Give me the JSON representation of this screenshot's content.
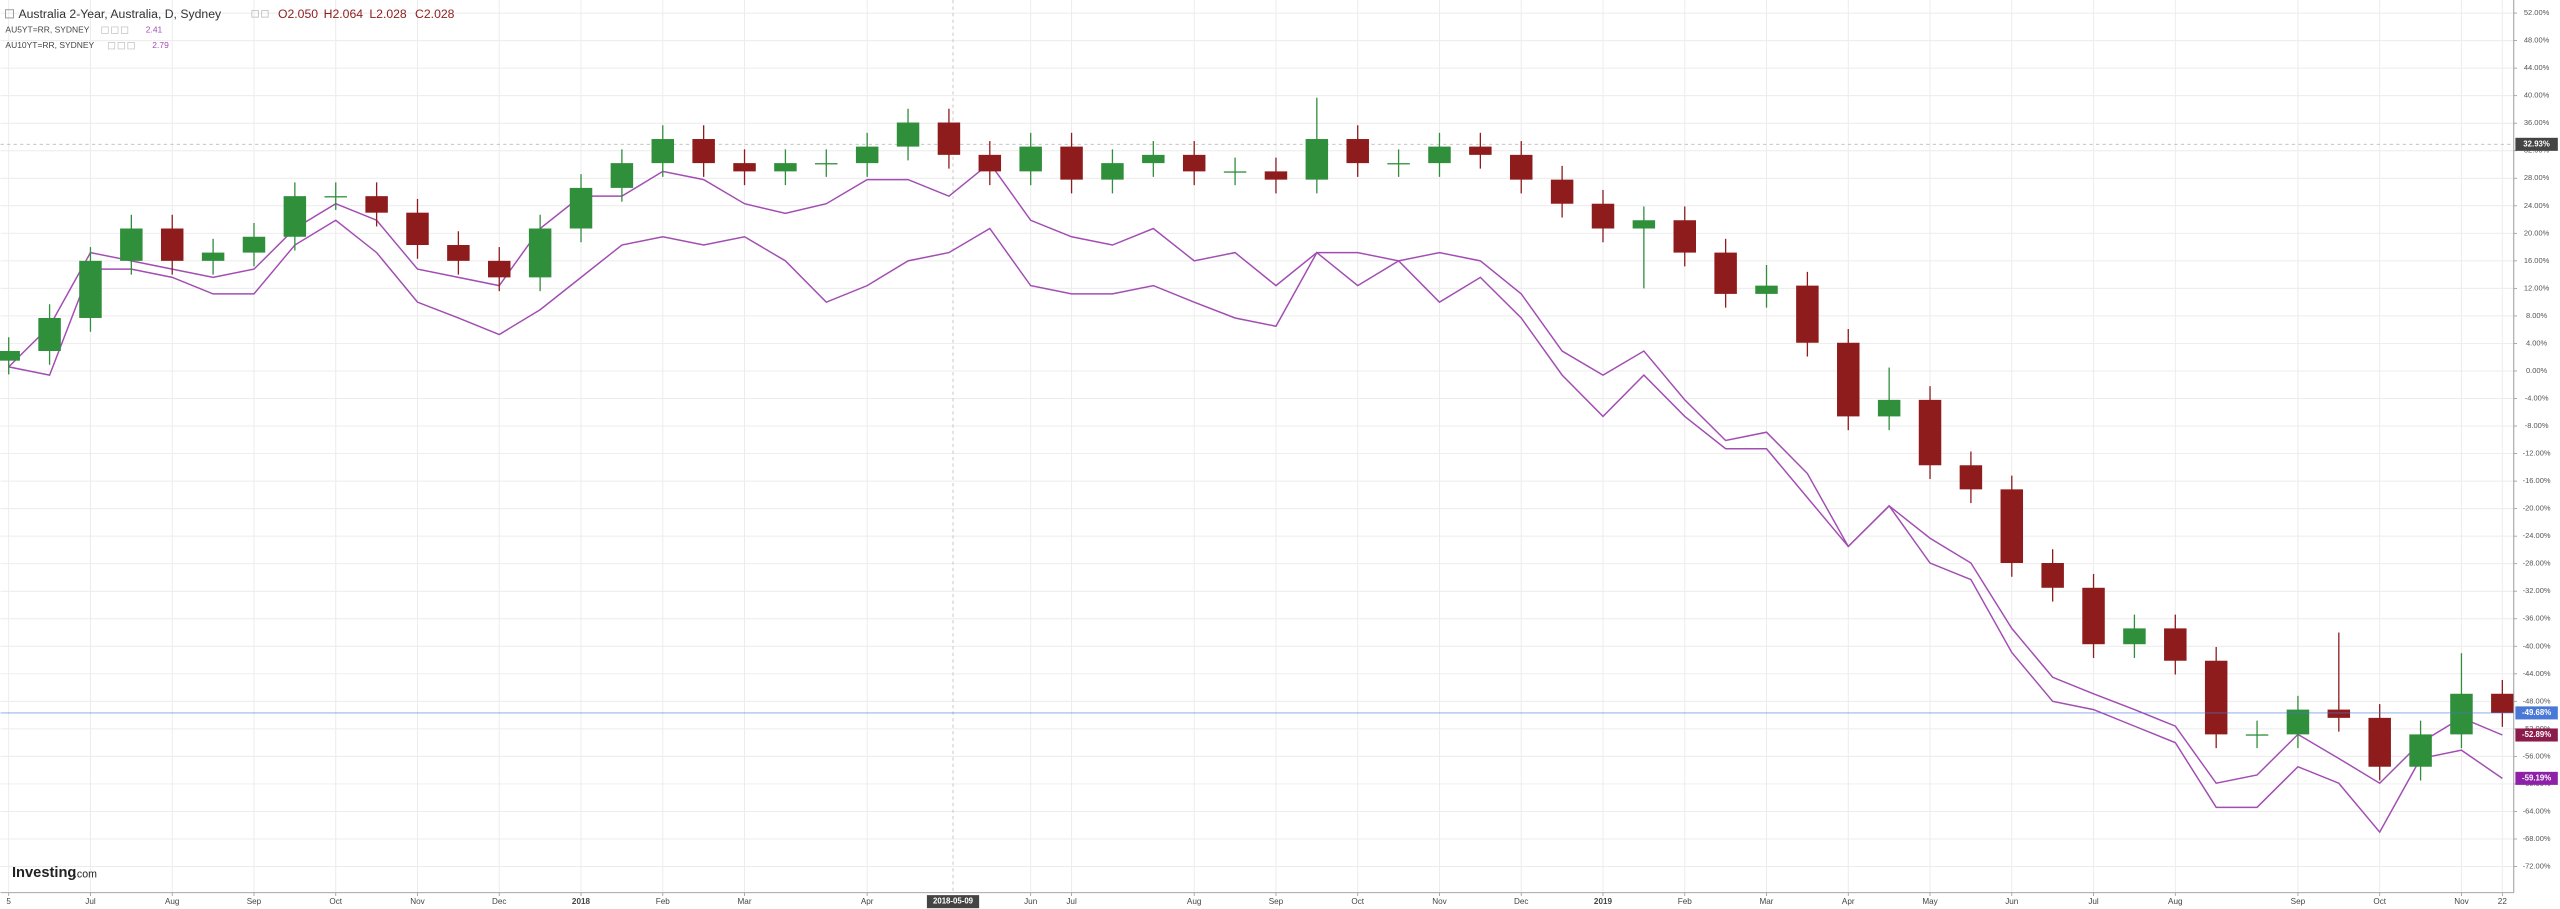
{
  "chart_data": {
    "type": "candlestick",
    "title": "Australia 2-Year, Australia, D, Sydney",
    "ohlc_readout": [
      "O2.050",
      "H2.064",
      "L2.028",
      "C2.028"
    ],
    "logo": {
      "name": "Investing",
      "suffix": ".com"
    },
    "categories": [
      "5",
      null,
      "Jul",
      null,
      "Aug",
      null,
      "Sep",
      null,
      "Oct",
      null,
      "Nov",
      null,
      "Dec",
      null,
      "2018",
      null,
      "Feb",
      null,
      "Mar",
      null,
      null,
      "Apr",
      null,
      null,
      null,
      "Jun",
      "Jul",
      null,
      null,
      "Aug",
      null,
      "Sep",
      null,
      "Oct",
      null,
      "Nov",
      null,
      "Dec",
      null,
      "2019",
      null,
      "Feb",
      null,
      "Mar",
      null,
      "Apr",
      null,
      "May",
      null,
      "Jun",
      null,
      "Jul",
      null,
      "Aug",
      null,
      null,
      "Sep",
      null,
      "Oct",
      null,
      "Nov",
      "22"
    ],
    "open": [
      1.5,
      2.9,
      7.7,
      16,
      20.7,
      16,
      17.2,
      19.5,
      25.4,
      25.4,
      23,
      18.3,
      16,
      13.6,
      20.7,
      26.6,
      30.2,
      33.7,
      30.2,
      29,
      30.2,
      30.2,
      32.6,
      36.1,
      31.4,
      29,
      32.6,
      27.8,
      30.2,
      31.4,
      29,
      29,
      27.8,
      33.7,
      30.2,
      30.2,
      32.6,
      31.4,
      27.8,
      24.3,
      20.7,
      21.9,
      17.2,
      11.2,
      12.4,
      4.1,
      -6.6,
      -4.2,
      -13.7,
      -17.2,
      -27.9,
      -31.5,
      -39.7,
      -37.4,
      -42.1,
      -52.8,
      -52.8,
      -49.2,
      -50.4,
      -57.5,
      -52.8,
      -46.9
    ],
    "high": [
      4.9,
      9.7,
      18,
      22.7,
      22.7,
      19.2,
      21.5,
      27.4,
      27.4,
      27.4,
      25,
      20.3,
      18,
      22.7,
      28.6,
      32.2,
      35.7,
      35.7,
      32.2,
      32.2,
      32.2,
      34.6,
      38.1,
      38.1,
      33.4,
      34.6,
      34.6,
      32.2,
      33.4,
      33.4,
      31,
      31,
      39.7,
      35.7,
      32.2,
      34.6,
      34.6,
      33.4,
      29.8,
      26.3,
      23.9,
      23.9,
      19.2,
      15.4,
      14.4,
      6.1,
      0.5,
      -2.2,
      -11.7,
      -15.2,
      -25.9,
      -29.5,
      -35.4,
      -35.4,
      -40.1,
      -50.8,
      -47.2,
      -38,
      -48.4,
      -50.8,
      -41,
      -44.9
    ],
    "low": [
      -0.5,
      0.9,
      5.7,
      14,
      14,
      14,
      15.2,
      17.5,
      23.4,
      21,
      16.3,
      14,
      11.6,
      11.6,
      18.7,
      24.6,
      28.2,
      28.2,
      27,
      27,
      28.2,
      28.2,
      30.6,
      29.4,
      27,
      27,
      25.8,
      25.8,
      28.2,
      27,
      27,
      25.8,
      25.8,
      28.2,
      28.2,
      28.2,
      29.4,
      25.8,
      22.3,
      18.7,
      12,
      15.2,
      9.2,
      9.2,
      2.1,
      -8.6,
      -8.6,
      -15.7,
      -19.2,
      -29.9,
      -33.5,
      -41.7,
      -41.7,
      -44.1,
      -54.8,
      -54.8,
      -54.8,
      -52.4,
      -59.5,
      -59.5,
      -54.8,
      -51.7
    ],
    "close": [
      2.9,
      7.7,
      16,
      20.7,
      16,
      17.2,
      19.5,
      25.4,
      25.4,
      23,
      18.3,
      16,
      13.6,
      20.7,
      26.6,
      30.2,
      33.7,
      30.2,
      29,
      30.2,
      30.2,
      32.6,
      36.1,
      31.4,
      29,
      32.6,
      27.8,
      30.2,
      31.4,
      29,
      29,
      27.8,
      33.7,
      30.2,
      30.2,
      32.6,
      31.4,
      27.8,
      24.3,
      20.7,
      21.9,
      17.2,
      11.2,
      12.4,
      4.1,
      -6.6,
      -4.2,
      -13.7,
      -17.2,
      -27.9,
      -31.5,
      -39.7,
      -37.4,
      -42.1,
      -52.8,
      -52.8,
      -49.2,
      -50.4,
      -57.5,
      -52.8,
      -46.9,
      -49.68
    ],
    "up_color": "#2f8f3a",
    "down_color": "#8e1c1c",
    "last_label": {
      "value": -49.68,
      "label": "-49.68%",
      "color": "#4a78d6"
    },
    "series": [
      {
        "name": "AU5YT=RR, SYDNEY",
        "readout": "2.41",
        "color": "#a24db2",
        "type": "line",
        "values": [
          0.6,
          6.5,
          17.2,
          16,
          14.8,
          13.6,
          14.8,
          20.7,
          24.3,
          21.9,
          14.8,
          13.6,
          12.4,
          20.7,
          25.4,
          25.4,
          29,
          27.8,
          24.3,
          22.9,
          24.3,
          27.8,
          27.8,
          25.4,
          30.2,
          21.9,
          19.5,
          18.3,
          20.7,
          16,
          17.2,
          12.4,
          17.2,
          17.2,
          16,
          17.2,
          16,
          11.2,
          2.9,
          -0.6,
          2.9,
          -4.2,
          -10.1,
          -8.9,
          -14.9,
          -25.5,
          -19.6,
          -24.3,
          -27.9,
          -37.4,
          -44.5,
          -46.9,
          -49.2,
          -51.6,
          -59.9,
          -58.7,
          -52.8,
          -56.3,
          -59.9,
          -54,
          -50.4,
          -52.89
        ],
        "last_label": {
          "value": -52.89,
          "label": "-52.89%",
          "color": "#8a1b4a"
        }
      },
      {
        "name": "AU10YT=RR, SYDNEY",
        "readout": "2.79",
        "color": "#a24db2",
        "type": "line",
        "values": [
          0.6,
          -0.6,
          14.8,
          14.8,
          13.6,
          11.2,
          11.2,
          18.3,
          21.9,
          17.2,
          10,
          7.7,
          5.3,
          8.9,
          13.6,
          18.3,
          19.5,
          18.3,
          19.5,
          16,
          10,
          12.4,
          16,
          17.2,
          20.7,
          12.4,
          11.2,
          11.2,
          12.4,
          10,
          7.7,
          6.5,
          17.2,
          12.4,
          16,
          10,
          13.6,
          7.7,
          -0.6,
          -6.6,
          -0.6,
          -6.6,
          -11.3,
          -11.3,
          -18.4,
          -25.5,
          -19.6,
          -27.9,
          -30.3,
          -40.9,
          -48,
          -49.2,
          -51.6,
          -54,
          -63.4,
          -63.4,
          -57.5,
          -59.9,
          -67,
          -56.3,
          -55.1,
          -59.19
        ],
        "last_label": {
          "value": -59.19,
          "label": "-59.19%",
          "color": "#8d22a8"
        }
      }
    ],
    "crosshair": {
      "x_label": "2018-05-09",
      "y": {
        "value": 32.93,
        "label": "32.93%"
      }
    },
    "ylim": [
      -75.8,
      53.9
    ],
    "yticks": [
      {
        "value": 52,
        "label": "52.00%"
      },
      {
        "value": 48,
        "label": "48.00%"
      },
      {
        "value": 44,
        "label": "44.00%"
      },
      {
        "value": 40,
        "label": "40.00%"
      },
      {
        "value": 36,
        "label": "36.00%"
      },
      {
        "value": 32,
        "label": "32.00%"
      },
      {
        "value": 28,
        "label": "28.00%"
      },
      {
        "value": 24,
        "label": "24.00%"
      },
      {
        "value": 20,
        "label": "20.00%"
      },
      {
        "value": 16,
        "label": "16.00%"
      },
      {
        "value": 12,
        "label": "12.00%"
      },
      {
        "value": 8,
        "label": "8.00%"
      },
      {
        "value": 4,
        "label": "4.00%"
      },
      {
        "value": 0,
        "label": "0.00%"
      },
      {
        "value": -4,
        "label": "-4.00%"
      },
      {
        "value": -8,
        "label": "-8.00%"
      },
      {
        "value": -12,
        "label": "-12.00%"
      },
      {
        "value": -16,
        "label": "-16.00%"
      },
      {
        "value": -20,
        "label": "-20.00%"
      },
      {
        "value": -24,
        "label": "-24.00%"
      },
      {
        "value": -28,
        "label": "-28.00%"
      },
      {
        "value": -32,
        "label": "-32.00%"
      },
      {
        "value": -36,
        "label": "-36.00%"
      },
      {
        "value": -40,
        "label": "-40.00%"
      },
      {
        "value": -44,
        "label": "-44.00%"
      },
      {
        "value": -48,
        "label": "-48.00%"
      },
      {
        "value": -52,
        "label": "-52.00%"
      },
      {
        "value": -56,
        "label": "-56.00%"
      },
      {
        "value": -60,
        "label": "-60.00%"
      },
      {
        "value": -64,
        "label": "-64.00%"
      },
      {
        "value": -68,
        "label": "-68.00%"
      },
      {
        "value": -72,
        "label": "-72.00%"
      }
    ],
    "grid": true
  }
}
